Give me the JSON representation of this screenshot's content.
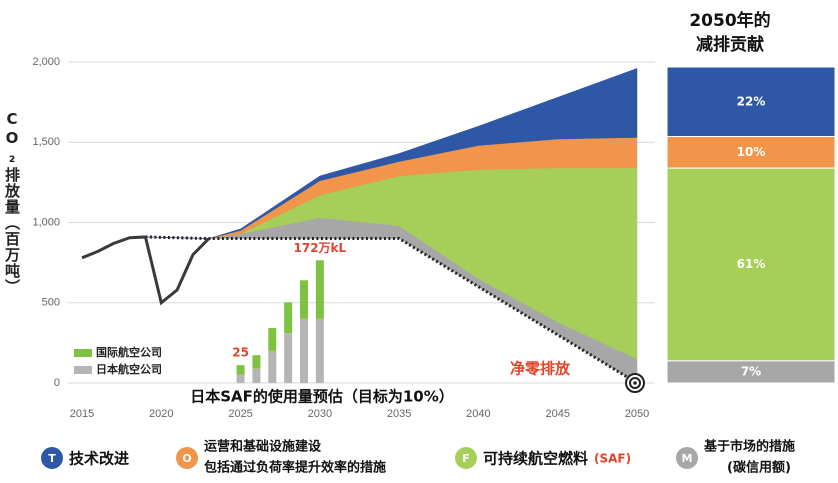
{
  "chart_data": {
    "type": "stacked_area",
    "y_label": "CO₂排放量（百万吨）",
    "x_title": "日本SAF的使用量预估（目标为10%）",
    "xlim": [
      2015,
      2050
    ],
    "xticks": [
      2015,
      2020,
      2025,
      2030,
      2035,
      2040,
      2045,
      2050
    ],
    "ylim": [
      0,
      2000
    ],
    "yticks": [
      {
        "value": 2000,
        "label": "2,000"
      },
      {
        "value": 1500,
        "label": "1,500"
      },
      {
        "value": 1000,
        "label": "1,000"
      },
      500,
      0
    ],
    "grid": true,
    "history": {
      "color": "#3a3a3a",
      "x": [
        2015,
        2016,
        2017,
        2018,
        2019,
        2020,
        2021,
        2022,
        2023
      ],
      "values": [
        780,
        820,
        870,
        905,
        910,
        500,
        580,
        800,
        900
      ]
    },
    "x": [
      2019,
      2023,
      2025,
      2030,
      2035,
      2040,
      2045,
      2050
    ],
    "net_path": {
      "color": "#222222",
      "values": [
        910,
        900,
        900,
        900,
        900,
        600,
        300,
        0
      ]
    },
    "series": [
      {
        "letter": "T",
        "name": "技术改进",
        "color": "#2e57a6",
        "values": [
          0,
          0,
          10,
          30,
          50,
          120,
          260,
          430
        ],
        "share": 22,
        "share_label": "22%"
      },
      {
        "letter": "O",
        "name": "运营和基础设施建设",
        "detail": "包括通过负荷率提升效率的措施",
        "color": "#f0954a",
        "values": [
          0,
          0,
          20,
          90,
          90,
          150,
          180,
          190
        ],
        "share": 10,
        "share_label": "10%"
      },
      {
        "letter": "F",
        "name": "可持续航空燃料",
        "tag": "(SAF)",
        "color": "#a6cf5a",
        "values": [
          0,
          0,
          0,
          140,
          310,
          680,
          960,
          1190
        ],
        "share": 61,
        "share_label": "61%"
      },
      {
        "letter": "M",
        "name": "基于市场的措施",
        "detail": "(碳信用额)",
        "color": "#a7a7a7",
        "values": [
          0,
          0,
          30,
          130,
          80,
          50,
          80,
          150
        ],
        "share": 7,
        "share_label": "7%"
      }
    ],
    "saf": {
      "ylim": [
        0,
        450
      ],
      "x": [
        2025,
        2026,
        2027,
        2028,
        2029,
        2030
      ],
      "series": [
        {
          "name": "国际航空公司",
          "color": "#7fc241",
          "values": [
            13,
            19,
            32,
            43,
            54,
            82
          ]
        },
        {
          "name": "日本航空公司",
          "color": "#b5b5b5",
          "values": [
            12,
            20,
            45,
            70,
            90,
            90
          ]
        }
      ],
      "labels": [
        {
          "index": 0,
          "text": "25"
        },
        {
          "index": 5,
          "text": "172万kL"
        }
      ]
    },
    "net_zero_label": "净零排放",
    "contribution_title": [
      "2050年的",
      "减排贡献"
    ]
  }
}
